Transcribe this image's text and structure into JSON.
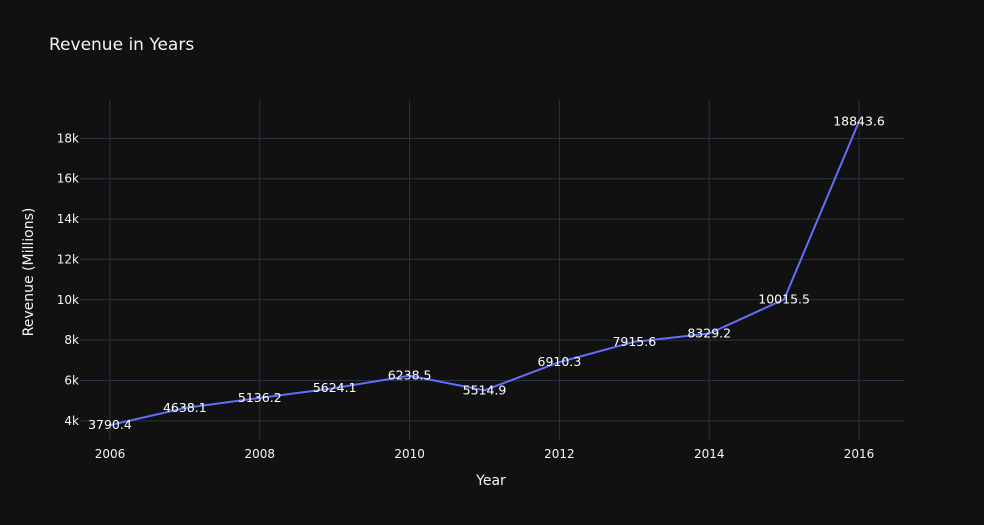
{
  "chart_data": {
    "type": "line",
    "title": "Revenue in Years",
    "xlabel": "Year",
    "ylabel": "Revenue (Millions)",
    "x": [
      2006,
      2007,
      2008,
      2009,
      2010,
      2011,
      2012,
      2013,
      2014,
      2015,
      2016
    ],
    "series": [
      {
        "values": [
          3790.4,
          4638.1,
          5136.2,
          5624.1,
          6238.5,
          5514.9,
          6910.3,
          7915.6,
          8329.2,
          10015.5,
          18843.6
        ],
        "labels": [
          "3790.4",
          "4638.1",
          "5136.2",
          "5624.1",
          "6238.5",
          "5514.9",
          "6910.3",
          "7915.6",
          "8329.2",
          "10015.5",
          "18843.6"
        ],
        "color": "#636efa"
      }
    ],
    "xticks": [
      2006,
      2008,
      2010,
      2012,
      2014,
      2016
    ],
    "xtick_labels": [
      "2006",
      "2008",
      "2010",
      "2012",
      "2014",
      "2016"
    ],
    "yticks": [
      4000,
      6000,
      8000,
      10000,
      12000,
      14000,
      16000,
      18000
    ],
    "ytick_labels": [
      "4k",
      "6k",
      "8k",
      "10k",
      "12k",
      "14k",
      "16k",
      "18k"
    ],
    "xlim": [
      2005.6,
      2016.6
    ],
    "ylim": [
      3050,
      19900
    ],
    "grid": true,
    "legend": "none",
    "colors": {
      "background": "#111111",
      "grid": "#283442",
      "text": "#f2f5fa",
      "line": "#636efa"
    }
  }
}
